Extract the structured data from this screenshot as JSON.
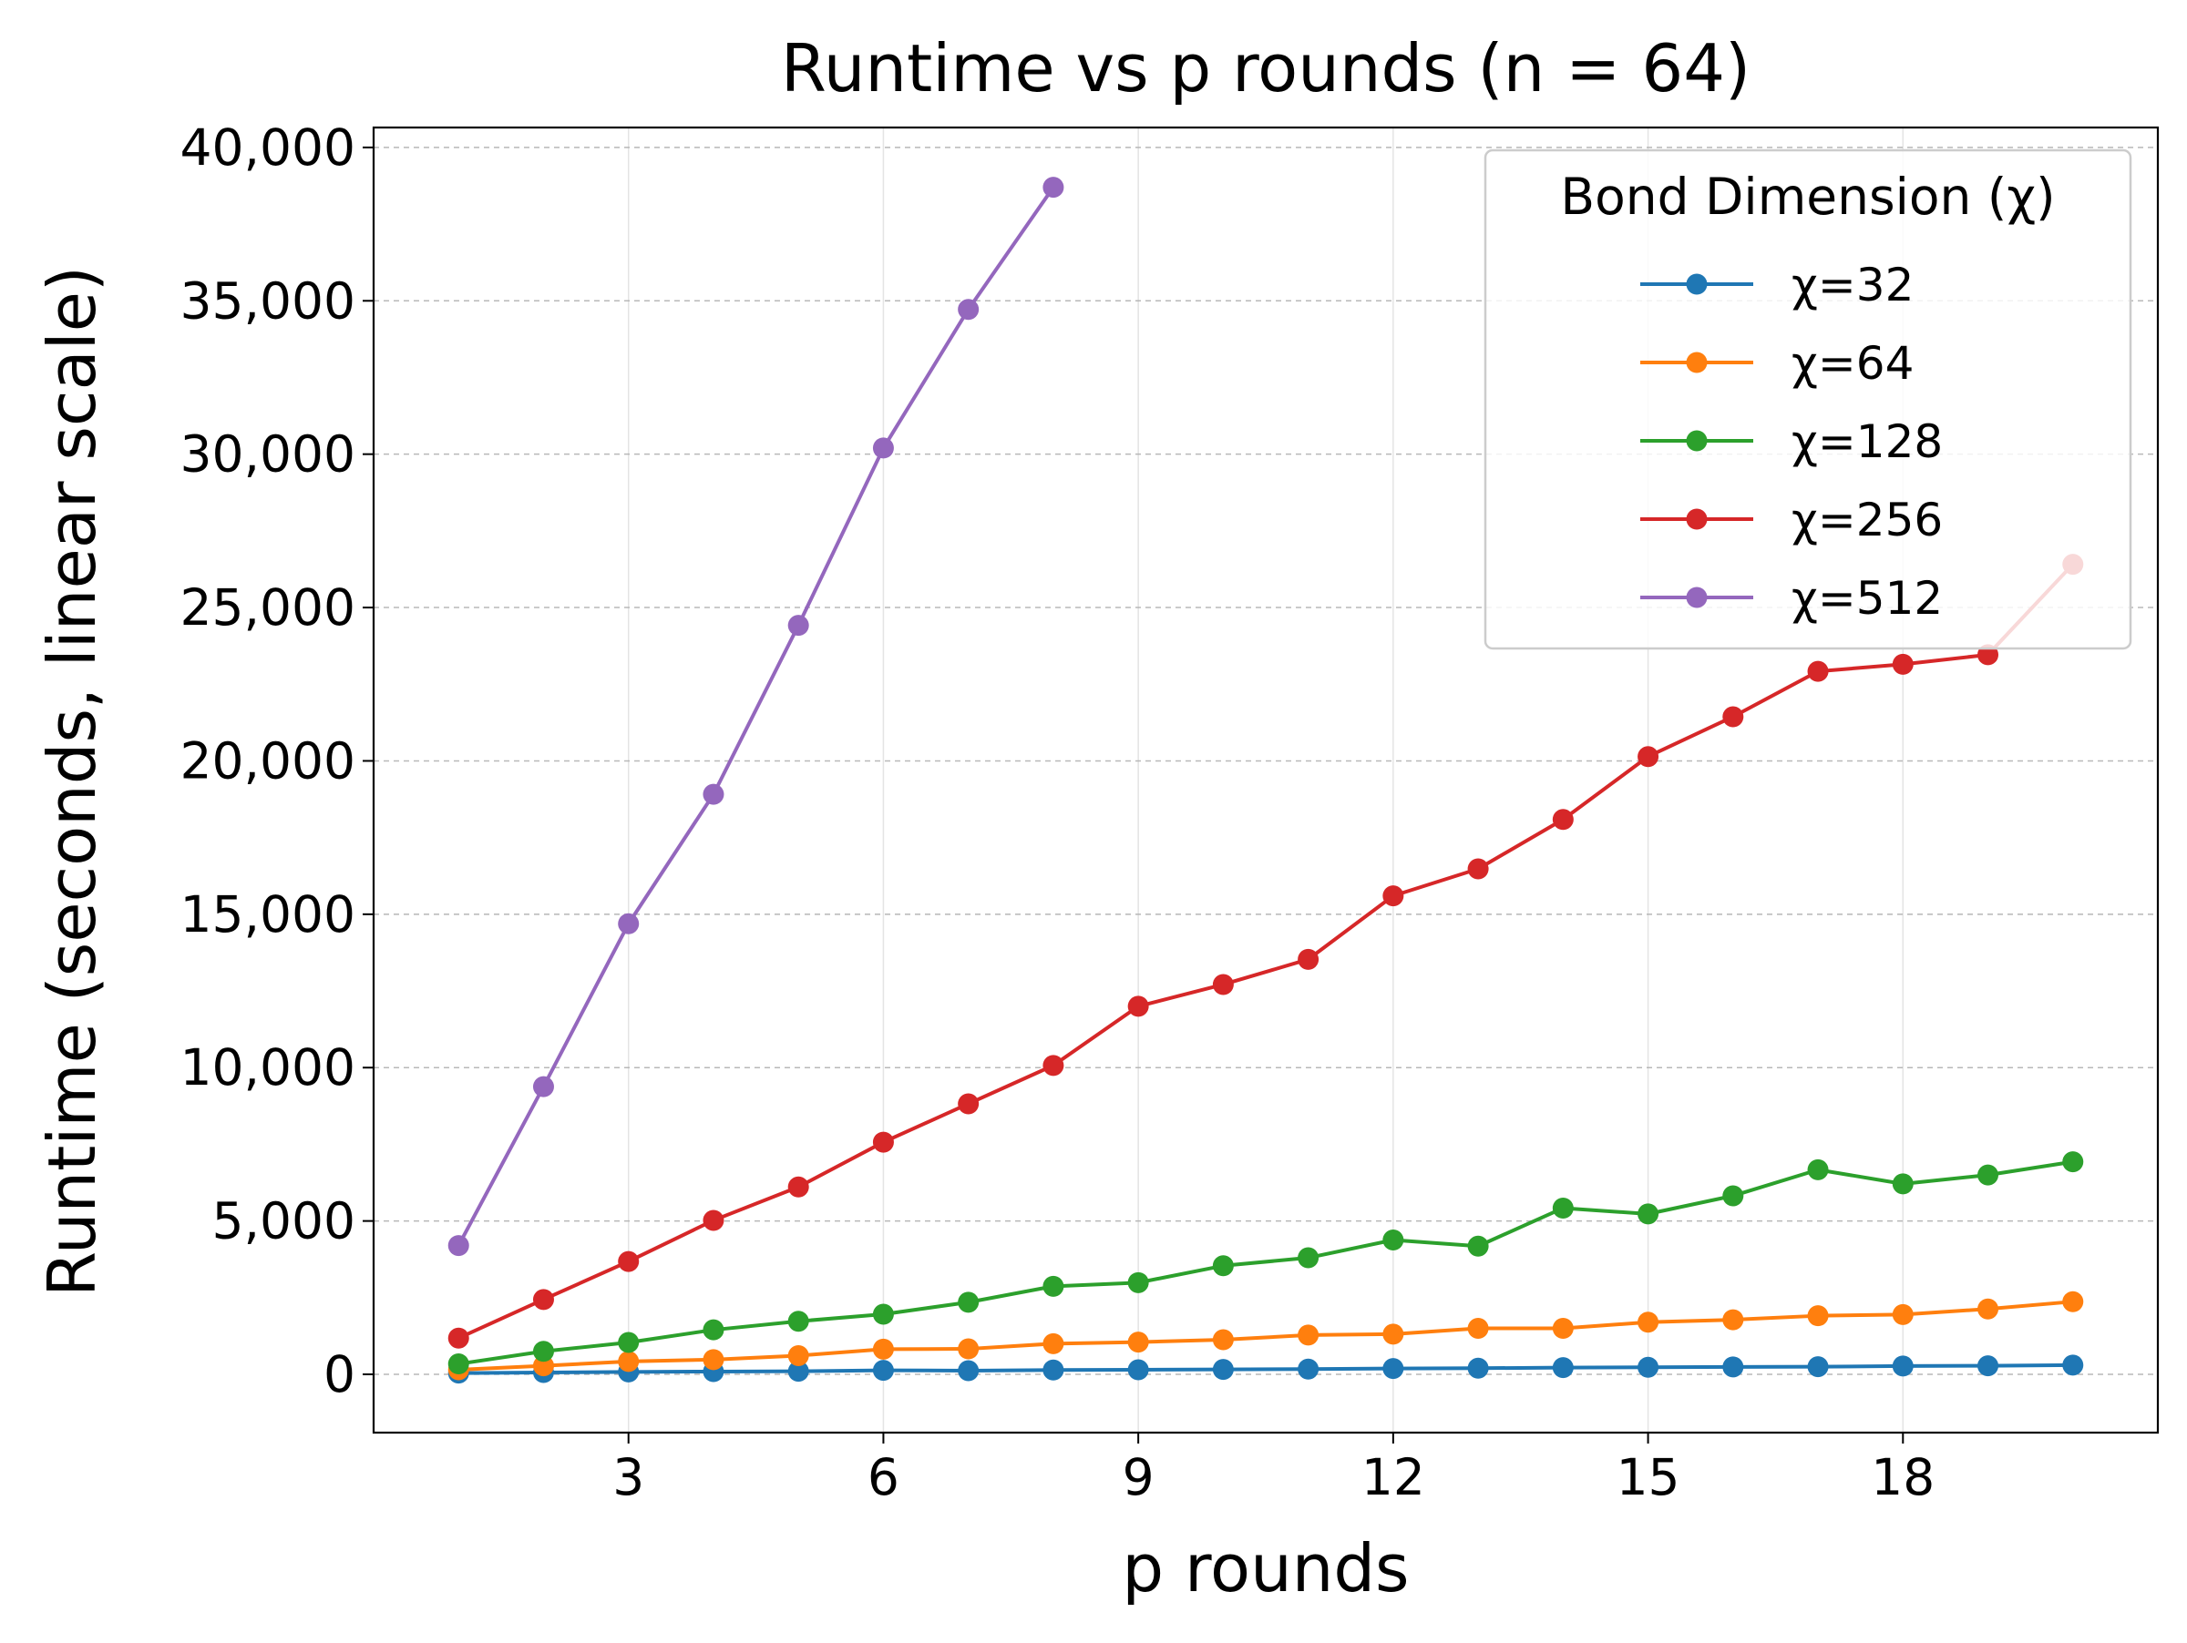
{
  "chart_data": {
    "type": "line",
    "title": "Runtime vs p rounds (n = 64)",
    "xlabel": "p rounds",
    "ylabel": "Runtime (seconds, linear scale)",
    "xlim": [
      0,
      21
    ],
    "ylim": [
      -1900,
      40650
    ],
    "xticks": [
      3,
      6,
      9,
      12,
      15,
      18
    ],
    "xtick_labels": [
      "3",
      "6",
      "9",
      "12",
      "15",
      "18"
    ],
    "yticks": [
      0,
      5000,
      10000,
      15000,
      20000,
      25000,
      30000,
      35000,
      40000
    ],
    "ytick_labels": [
      "0",
      "5,000",
      "10,000",
      "15,000",
      "20,000",
      "25,000",
      "30,000",
      "35,000",
      "40,000"
    ],
    "grid": true,
    "legend": {
      "title": "Bond Dimension (χ)",
      "placement": "top-right"
    },
    "series": [
      {
        "name": "χ=32",
        "color": "#1f77b4",
        "x": [
          1,
          2,
          3,
          4,
          5,
          6,
          7,
          8,
          9,
          10,
          11,
          12,
          13,
          14,
          15,
          16,
          17,
          18,
          19,
          20
        ],
        "values": [
          40,
          60,
          80,
          90,
          100,
          130,
          120,
          140,
          150,
          160,
          170,
          190,
          200,
          220,
          230,
          240,
          250,
          270,
          280,
          300
        ]
      },
      {
        "name": "χ=64",
        "color": "#ff7f0e",
        "x": [
          1,
          2,
          3,
          4,
          5,
          6,
          7,
          8,
          9,
          10,
          11,
          12,
          13,
          14,
          15,
          16,
          17,
          18,
          19,
          20
        ],
        "values": [
          150,
          280,
          420,
          480,
          610,
          820,
          830,
          1000,
          1050,
          1130,
          1280,
          1310,
          1500,
          1500,
          1700,
          1780,
          1910,
          1950,
          2130,
          2370
        ]
      },
      {
        "name": "χ=128",
        "color": "#2ca02c",
        "x": [
          1,
          2,
          3,
          4,
          5,
          6,
          7,
          8,
          9,
          10,
          11,
          12,
          13,
          14,
          15,
          16,
          17,
          18,
          19,
          20
        ],
        "values": [
          340,
          750,
          1040,
          1450,
          1730,
          1960,
          2350,
          2870,
          2990,
          3540,
          3800,
          4380,
          4180,
          5420,
          5230,
          5820,
          6670,
          6210,
          6500,
          6930
        ]
      },
      {
        "name": "χ=256",
        "color": "#d62728",
        "x": [
          1,
          2,
          3,
          4,
          5,
          6,
          7,
          8,
          9,
          10,
          11,
          12,
          13,
          14,
          15,
          16,
          17,
          18,
          19,
          20
        ],
        "values": [
          1180,
          2440,
          3680,
          5020,
          6110,
          7570,
          8820,
          10070,
          12000,
          12710,
          13530,
          15600,
          16480,
          18090,
          20140,
          21440,
          22920,
          23150,
          23460,
          26410
        ]
      },
      {
        "name": "χ=512",
        "color": "#9467bd",
        "x": [
          1,
          2,
          3,
          4,
          5,
          6,
          7,
          8
        ],
        "values": [
          4200,
          9380,
          14690,
          18910,
          24420,
          30200,
          34720,
          38700
        ]
      }
    ]
  }
}
